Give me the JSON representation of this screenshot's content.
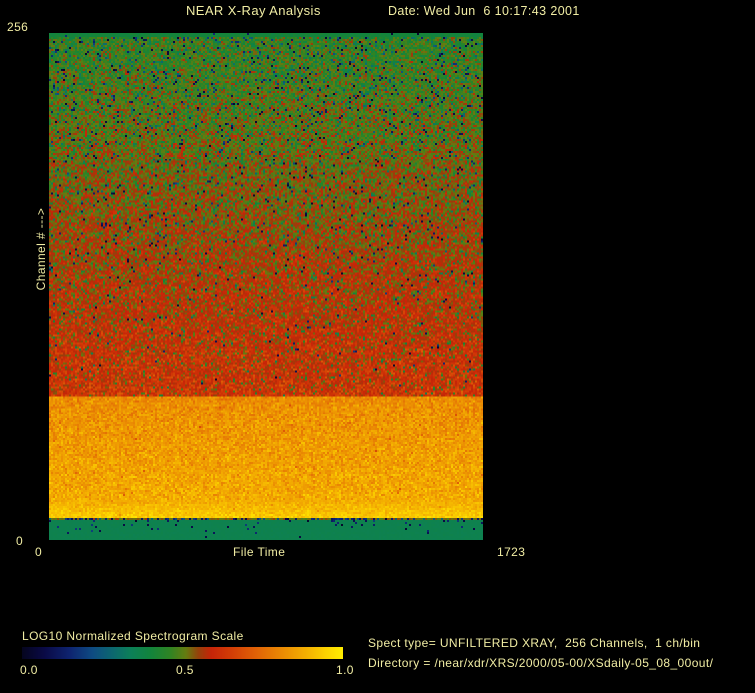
{
  "header": {
    "title": "NEAR X-Ray Analysis",
    "date": "Date: Wed Jun  6 10:17:43 2001"
  },
  "axes": {
    "y_max": "256",
    "y_min": "0",
    "y_title": "Channel # --->",
    "x_min": "0",
    "x_title": "File Time",
    "x_max": "1723"
  },
  "legend": {
    "title": "LOG10 Normalized Spectrogram Scale",
    "tick0": "0.0",
    "tick1": "0.5",
    "tick2": "1.0"
  },
  "info": {
    "spect_type": "Spect type= UNFILTERED XRAY,  256 Channels,  1 ch/bin",
    "directory": "Directory = /near/xdr/XRS/2000/05-00/XSdaily-05_08_00out/"
  },
  "colors": {
    "background": "#000000",
    "text": "#f1eda4"
  },
  "chart_data": {
    "type": "heatmap",
    "title": "NEAR X-Ray Analysis",
    "xlabel": "File Time",
    "ylabel": "Channel # --->",
    "xlim": [
      0,
      1723
    ],
    "ylim": [
      0,
      256
    ],
    "grid": false,
    "colorbar": {
      "label": "LOG10 Normalized Spectrogram Scale",
      "ticks": [
        0.0,
        0.5,
        1.0
      ],
      "range": [
        0.0,
        1.0
      ],
      "position": "bottom-left"
    },
    "colormap_stops": [
      [
        0.0,
        "#05051e"
      ],
      [
        0.07,
        "#0a0a46"
      ],
      [
        0.15,
        "#0e2470"
      ],
      [
        0.22,
        "#0e4b82"
      ],
      [
        0.28,
        "#0c6670"
      ],
      [
        0.34,
        "#0c8058"
      ],
      [
        0.4,
        "#12843c"
      ],
      [
        0.46,
        "#2e8424"
      ],
      [
        0.51,
        "#647c10"
      ],
      [
        0.55,
        "#96400a"
      ],
      [
        0.59,
        "#c62408"
      ],
      [
        0.65,
        "#d23c06"
      ],
      [
        0.73,
        "#e06206"
      ],
      [
        0.81,
        "#ea8a03"
      ],
      [
        0.89,
        "#f4b201"
      ],
      [
        0.95,
        "#fcd400"
      ],
      [
        1.0,
        "#ffee00"
      ]
    ],
    "bands": [
      {
        "name": "top-edge-line",
        "c": [
          253.5,
          256
        ],
        "v": [
          0.4,
          0.4
        ],
        "n": 0.01,
        "sp": [
          0,
          0
        ],
        "sd": [
          0,
          0
        ],
        "dk": [
          0.03,
          0.03
        ]
      },
      {
        "name": "green-to-red-noise",
        "c": [
          73,
          253.5
        ],
        "v": [
          0.465,
          0.625
        ],
        "n": 0.055,
        "sp": [
          0.1,
          0.08
        ],
        "sd": [
          0.06,
          0.22
        ],
        "dk": [
          0.05,
          0.001
        ]
      },
      {
        "name": "amber-band",
        "c": [
          20,
          73
        ],
        "v": [
          0.815,
          0.875
        ],
        "n": 0.042,
        "sp": [
          0.012,
          0.012
        ],
        "sd": [
          0.04,
          0.1
        ],
        "dk": [
          0,
          0
        ]
      },
      {
        "name": "amber-glow",
        "c": [
          11,
          20
        ],
        "v": [
          0.875,
          0.94
        ],
        "n": 0.028,
        "sp": [
          0.01,
          0.01
        ],
        "sd": [
          0.03,
          0.08
        ],
        "dk": [
          0,
          0
        ]
      },
      {
        "name": "dark-separator",
        "c": [
          10,
          11
        ],
        "v": [
          0.52,
          0.52
        ],
        "n": 0.02,
        "sp": [
          0.35,
          0.35
        ],
        "sd": [
          0.25,
          0.45
        ],
        "dk": [
          0.08,
          0.08
        ]
      },
      {
        "name": "bottom-teal-band",
        "c": [
          0,
          10
        ],
        "v": [
          0.36,
          0.36
        ],
        "n": 0.004,
        "sp": [
          0,
          0
        ],
        "sd": [
          0,
          0
        ],
        "dk": [
          0.05,
          0
        ]
      }
    ]
  }
}
